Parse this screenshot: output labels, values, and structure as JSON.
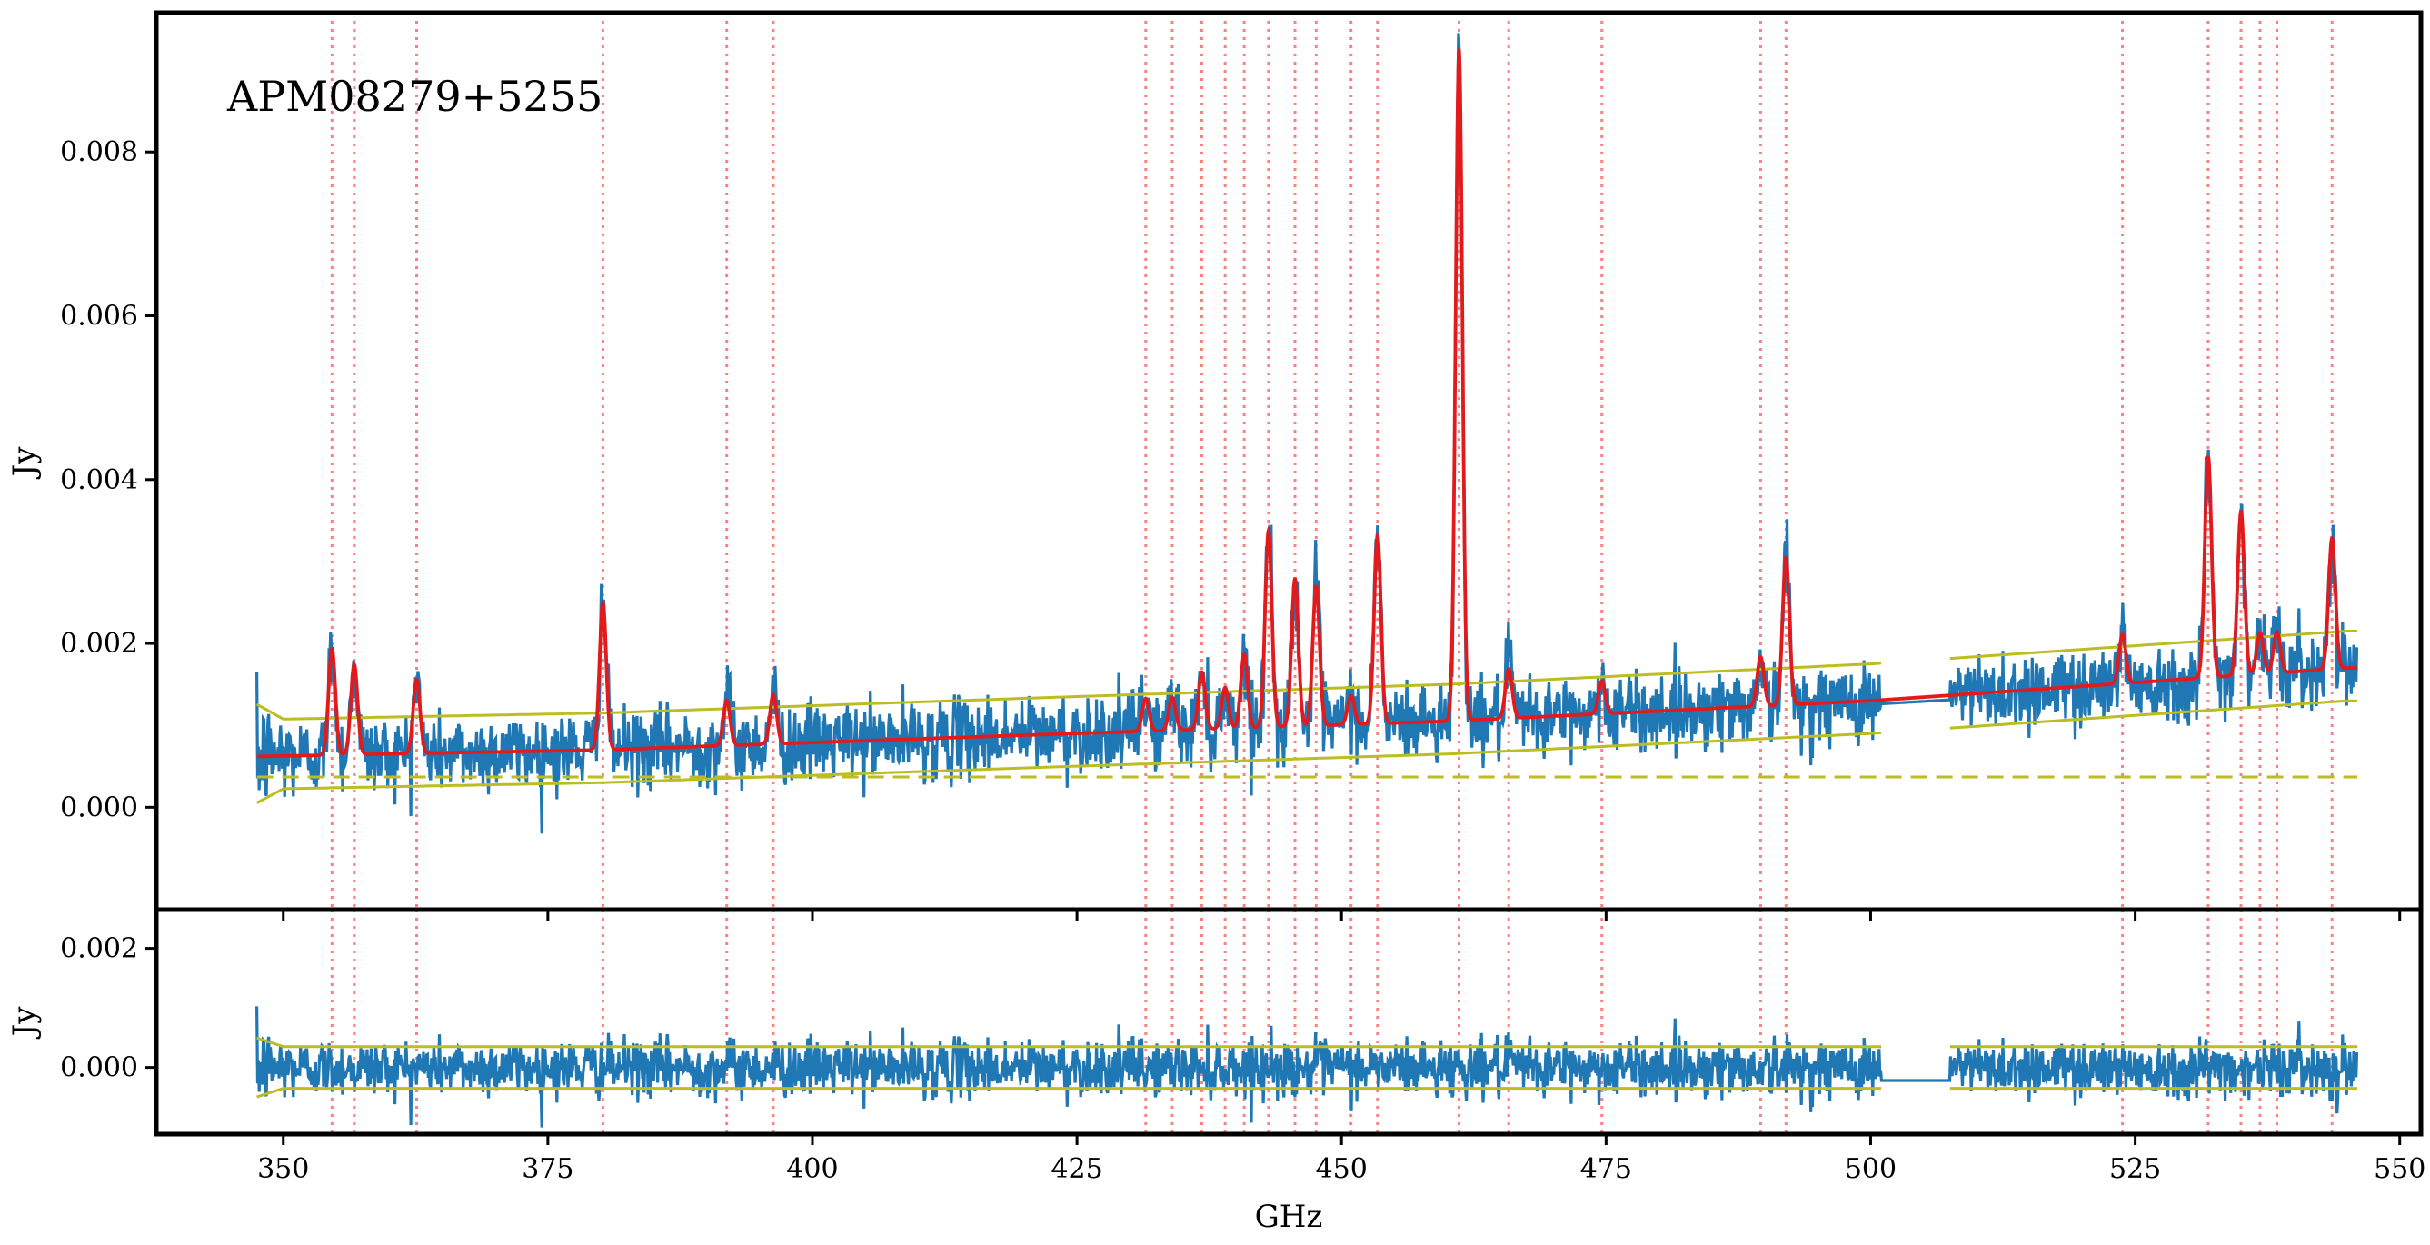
{
  "chart_data": [
    {
      "type": "line",
      "panel": "top",
      "annotation": "APM08279+5255",
      "ylabel": "Jy",
      "xlim": [
        338,
        552
      ],
      "ylim": [
        -0.00125,
        0.0097
      ],
      "xticks": [
        350,
        375,
        400,
        425,
        450,
        475,
        500,
        525,
        550
      ],
      "yticks": [
        0.0,
        0.002,
        0.004,
        0.006,
        0.008
      ],
      "ytick_labels": [
        "0.000",
        "0.002",
        "0.004",
        "0.006",
        "0.008"
      ],
      "line_positions_GHz": [
        354.6,
        356.7,
        362.6,
        380.2,
        391.9,
        396.3,
        431.5,
        434.0,
        436.8,
        439.0,
        440.8,
        443.1,
        445.6,
        447.6,
        450.9,
        453.4,
        461.1,
        465.8,
        474.6,
        489.6,
        492.0,
        523.8,
        531.9,
        535.0,
        536.8,
        538.4,
        543.6
      ],
      "gaps_GHz": [
        [
          501.0,
          507.5
        ]
      ],
      "series": [
        {
          "role": "data",
          "color": "#1f77b4",
          "x_range": [
            347.5,
            546.0
          ],
          "noise_sigma_Jy": 0.00024,
          "continuum": [
            [
              347.5,
              0.00062
            ],
            [
              380,
              0.0007
            ],
            [
              420,
              0.00088
            ],
            [
              460,
              0.00105
            ],
            [
              500,
              0.0013
            ],
            [
              545,
              0.0017
            ]
          ]
        },
        {
          "role": "model",
          "color": "#e31a1c",
          "continuum": [
            [
              347.5,
              0.00062
            ],
            [
              380,
              0.0007
            ],
            [
              420,
              0.00088
            ],
            [
              460,
              0.00105
            ],
            [
              500,
              0.0013
            ],
            [
              545,
              0.0017
            ]
          ],
          "lines": [
            [
              354.6,
              0.0013
            ],
            [
              356.7,
              0.0011
            ],
            [
              362.6,
              0.0009
            ],
            [
              380.2,
              0.0018
            ],
            [
              391.9,
              0.00055
            ],
            [
              396.3,
              0.0006
            ],
            [
              431.5,
              0.0004
            ],
            [
              434.0,
              0.0004
            ],
            [
              436.8,
              0.0007
            ],
            [
              439.0,
              0.0005
            ],
            [
              440.8,
              0.0009
            ],
            [
              443.1,
              0.0024
            ],
            [
              445.6,
              0.0018
            ],
            [
              447.6,
              0.0017
            ],
            [
              450.9,
              0.00035
            ],
            [
              453.4,
              0.0023
            ],
            [
              461.1,
              0.0082
            ],
            [
              465.8,
              0.0006
            ],
            [
              474.6,
              0.0004
            ],
            [
              489.6,
              0.0006
            ],
            [
              492.0,
              0.0018
            ],
            [
              523.8,
              0.0006
            ],
            [
              531.9,
              0.0027
            ],
            [
              535.0,
              0.002
            ],
            [
              536.8,
              0.0005
            ],
            [
              538.4,
              0.0005
            ],
            [
              543.6,
              0.0016
            ]
          ]
        },
        {
          "role": "upper-envelope",
          "color": "#bcbd22",
          "offset_Jy": 0.00045
        },
        {
          "role": "lower-envelope",
          "color": "#bcbd22",
          "offset_Jy": -0.0004
        },
        {
          "role": "dashed-level",
          "color": "#bcbd22",
          "points": [
            [
              347.5,
              0.00037
            ],
            [
              546.0,
              0.00037
            ]
          ]
        }
      ]
    },
    {
      "type": "line",
      "panel": "bottom",
      "ylabel": "Jy",
      "xlabel": "GHz",
      "xlim": [
        338,
        552
      ],
      "ylim": [
        -0.00112,
        0.00265
      ],
      "xticks": [
        350,
        375,
        400,
        425,
        450,
        475,
        500,
        525,
        550
      ],
      "xtick_labels": [
        "350",
        "375",
        "400",
        "425",
        "450",
        "475",
        "500",
        "525",
        "550"
      ],
      "yticks": [
        0.0,
        0.002
      ],
      "ytick_labels": [
        "0.000",
        "0.002"
      ],
      "series": [
        {
          "role": "residual",
          "color": "#1f77b4",
          "x_range": [
            347.5,
            546.0
          ],
          "noise_sigma_Jy": 0.00024
        },
        {
          "role": "upper-envelope",
          "color": "#bcbd22",
          "offset_Jy": 0.00035
        },
        {
          "role": "lower-envelope",
          "color": "#bcbd22",
          "offset_Jy": -0.00035
        }
      ]
    }
  ],
  "colors": {
    "data": "#1f77b4",
    "model": "#e31a1c",
    "envelope": "#bcbd22",
    "guides": "#ff7f7f",
    "axes": "#000000"
  }
}
